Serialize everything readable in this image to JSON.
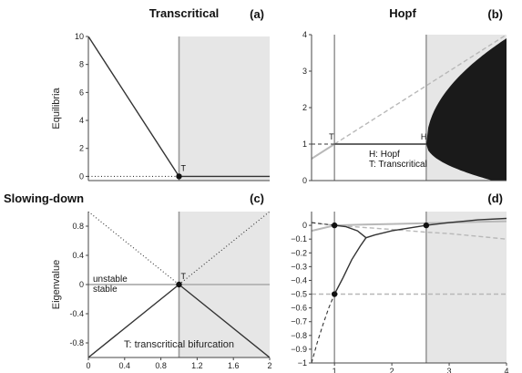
{
  "headings": {
    "left_top": "Transcritical",
    "right_top": "Hopf",
    "left_bottom": "Slowing-down"
  },
  "colors": {
    "shade": "#e6e6e6",
    "axis": "#444444",
    "dark_line": "#333333",
    "gray_line": "#b8b8b8",
    "vertical_marker": "#999999",
    "fill_dark": "#1a1a1a"
  },
  "chart_data": [
    {
      "id": "a",
      "type": "line",
      "letter": "(a)",
      "ylabel": "Equilibria",
      "xlim": [
        0,
        2
      ],
      "ylim": [
        -0.3,
        10
      ],
      "xticks": [],
      "yticks": [
        0,
        2,
        4,
        6,
        8,
        10
      ],
      "ytick_labels": [
        "0",
        "2",
        "4",
        "6",
        "8",
        "10"
      ],
      "shade_from": 1,
      "vertical_at": 1,
      "series": [
        {
          "style": "solid-dark",
          "x": [
            0,
            1
          ],
          "y": [
            10,
            0
          ]
        },
        {
          "style": "solid-dark",
          "x": [
            1,
            2
          ],
          "y": [
            0,
            0
          ]
        },
        {
          "style": "dotted-dark",
          "x": [
            0,
            1
          ],
          "y": [
            0,
            0
          ]
        }
      ],
      "points": [
        {
          "x": 1,
          "y": 0,
          "label": "T"
        }
      ]
    },
    {
      "id": "b",
      "type": "line",
      "letter": "(b)",
      "ylabel": "",
      "xlim": [
        0.6,
        4
      ],
      "ylim": [
        0,
        4
      ],
      "xticks": [],
      "yticks": [
        0,
        1,
        2,
        3,
        4
      ],
      "ytick_labels": [
        "0",
        "1",
        "2",
        "3",
        "4"
      ],
      "shade_from": 2.6,
      "vertical_at": [
        1,
        2.6
      ],
      "series": [
        {
          "style": "solid-gray",
          "x": [
            0.6,
            1
          ],
          "y": [
            0.6,
            1
          ]
        },
        {
          "style": "dashed-gray",
          "x": [
            1,
            4
          ],
          "y": [
            1,
            4
          ]
        },
        {
          "style": "dashed-dark",
          "x": [
            0.6,
            1
          ],
          "y": [
            1,
            1
          ]
        },
        {
          "style": "solid-dark",
          "x": [
            1,
            2.6
          ],
          "y": [
            1,
            1
          ]
        }
      ],
      "limit_cycle": {
        "x_start": 2.6,
        "x_end": 4,
        "y_center": 1,
        "upper_at_end": 3.9,
        "lower_at_end": -0.1
      },
      "point_labels": [
        {
          "x": 1,
          "y": 1,
          "label": "T"
        },
        {
          "x": 2.6,
          "y": 1,
          "label": "H"
        }
      ],
      "annotations": [
        "H: Hopf",
        "T: Transcritical"
      ]
    },
    {
      "id": "c",
      "type": "line",
      "letter": "(c)",
      "ylabel": "Eigenvalue",
      "xlim": [
        0,
        2
      ],
      "ylim": [
        -1,
        1
      ],
      "xticks": [
        0,
        0.4,
        0.8,
        1.2,
        1.6,
        2
      ],
      "xtick_labels": [
        "0",
        "0.4",
        "0.8",
        "1.2",
        "1.6",
        "2"
      ],
      "yticks": [
        -0.8,
        -0.4,
        0,
        0.4,
        0.8
      ],
      "ytick_labels": [
        "-0.8",
        "-0.4",
        "0",
        "0.4",
        "0.8"
      ],
      "shade_from": 1,
      "vertical_at": 1,
      "series": [
        {
          "style": "solid-dark",
          "x": [
            0,
            1
          ],
          "y": [
            -1,
            0
          ]
        },
        {
          "style": "solid-dark",
          "x": [
            1,
            2
          ],
          "y": [
            0,
            -1
          ]
        },
        {
          "style": "dotted-dark",
          "x": [
            0,
            1
          ],
          "y": [
            1,
            0
          ]
        },
        {
          "style": "dotted-dark",
          "x": [
            1,
            2
          ],
          "y": [
            0,
            1
          ]
        },
        {
          "style": "solid-gray",
          "x": [
            0,
            2
          ],
          "y": [
            0,
            0
          ]
        }
      ],
      "points": [
        {
          "x": 1,
          "y": 0,
          "label": "T"
        }
      ],
      "text_labels": [
        "unstable",
        "stable",
        "T: transcritical bifurcation"
      ]
    },
    {
      "id": "d",
      "type": "line",
      "letter": "(d)",
      "ylabel": "",
      "xlim": [
        0.6,
        4
      ],
      "ylim": [
        -1,
        0.1
      ],
      "xticks": [
        1,
        2,
        3,
        4
      ],
      "xtick_labels": [
        "1",
        "2",
        "3",
        "4"
      ],
      "yticks": [
        -1,
        -0.9,
        -0.8,
        -0.7,
        -0.6,
        -0.5,
        -0.4,
        -0.3,
        -0.2,
        -0.1,
        0
      ],
      "ytick_labels": [
        "−1",
        "−0.9",
        "−0.8",
        "−0.7",
        "−0.6",
        "−0.5",
        "−0.4",
        "−0.3",
        "−0.2",
        "−0.1",
        "0"
      ],
      "shade_from": 2.6,
      "vertical_at": [
        1,
        2.6
      ],
      "series": [
        {
          "style": "dashed-gray",
          "x": [
            0.6,
            1,
            2,
            3,
            4
          ],
          "y": [
            -0.5,
            -0.5,
            -0.5,
            -0.5,
            -0.5
          ]
        },
        {
          "style": "solid-gray",
          "x": [
            0.6,
            1,
            1.5,
            2,
            2.6,
            3,
            3.5,
            4
          ],
          "y": [
            -0.04,
            0,
            0.005,
            0.01,
            0.015,
            0.02,
            0.025,
            0.03
          ]
        },
        {
          "style": "dashed-gray",
          "x": [
            0.6,
            1,
            2,
            2.6,
            3,
            4
          ],
          "y": [
            0.02,
            0,
            -0.03,
            -0.05,
            -0.06,
            -0.1
          ]
        },
        {
          "style": "solid-dark",
          "x": [
            1,
            1.2,
            1.4,
            1.55,
            1.7,
            2,
            2.3,
            2.6
          ],
          "y": [
            0,
            -0.01,
            -0.04,
            -0.09,
            -0.07,
            -0.04,
            -0.02,
            0
          ]
        },
        {
          "style": "solid-dark",
          "x": [
            1,
            1.15,
            1.3,
            1.45,
            1.55
          ],
          "y": [
            -0.5,
            -0.38,
            -0.25,
            -0.15,
            -0.09
          ]
        },
        {
          "style": "solid-dark",
          "x": [
            2.6,
            3,
            3.5,
            4
          ],
          "y": [
            0,
            0.02,
            0.04,
            0.05
          ]
        },
        {
          "style": "dashed-dark",
          "x": [
            0.6,
            0.7,
            0.8,
            0.9,
            1
          ],
          "y": [
            -1.0,
            -0.85,
            -0.72,
            -0.6,
            -0.5
          ]
        },
        {
          "style": "dashed-dark",
          "x": [
            0.6,
            0.8,
            1
          ],
          "y": [
            0.02,
            0.01,
            0
          ]
        }
      ],
      "points": [
        {
          "x": 1,
          "y": 0
        },
        {
          "x": 1,
          "y": -0.5
        },
        {
          "x": 2.6,
          "y": 0
        }
      ]
    }
  ]
}
